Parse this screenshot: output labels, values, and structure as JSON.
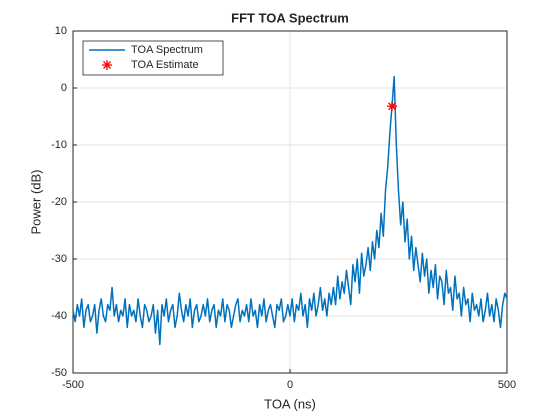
{
  "chart_data": {
    "type": "line",
    "title": "FFT TOA Spectrum",
    "xlabel": "TOA (ns)",
    "ylabel": "Power (dB)",
    "xlim": [
      -500,
      500
    ],
    "xticks": [
      -500,
      0,
      500
    ],
    "ylim": [
      -50,
      10
    ],
    "yticks": [
      -50,
      -40,
      -30,
      -20,
      -10,
      0,
      10
    ],
    "grid": true,
    "legend": "northwest",
    "series": [
      {
        "name": "TOA Spectrum",
        "color": "#0072bd",
        "style": "line",
        "x": [
          -500,
          -495,
          -490,
          -485,
          -480,
          -475,
          -470,
          -465,
          -460,
          -455,
          -450,
          -445,
          -440,
          -435,
          -430,
          -425,
          -420,
          -415,
          -410,
          -405,
          -400,
          -395,
          -390,
          -385,
          -380,
          -375,
          -370,
          -365,
          -360,
          -355,
          -350,
          -345,
          -340,
          -335,
          -330,
          -325,
          -320,
          -315,
          -310,
          -305,
          -300,
          -295,
          -290,
          -285,
          -280,
          -275,
          -270,
          -265,
          -260,
          -255,
          -250,
          -245,
          -240,
          -235,
          -230,
          -225,
          -220,
          -215,
          -210,
          -205,
          -200,
          -195,
          -190,
          -185,
          -180,
          -175,
          -170,
          -165,
          -160,
          -155,
          -150,
          -145,
          -140,
          -135,
          -130,
          -125,
          -120,
          -115,
          -110,
          -105,
          -100,
          -95,
          -90,
          -85,
          -80,
          -75,
          -70,
          -65,
          -60,
          -55,
          -50,
          -45,
          -40,
          -35,
          -30,
          -25,
          -20,
          -15,
          -10,
          -5,
          0,
          5,
          10,
          15,
          20,
          25,
          30,
          35,
          40,
          45,
          50,
          55,
          60,
          65,
          70,
          75,
          80,
          85,
          90,
          95,
          100,
          105,
          110,
          115,
          120,
          125,
          130,
          135,
          140,
          145,
          150,
          155,
          160,
          165,
          170,
          175,
          180,
          185,
          190,
          195,
          200,
          205,
          210,
          215,
          220,
          225,
          230,
          235,
          240,
          245,
          250,
          255,
          260,
          265,
          270,
          275,
          280,
          285,
          290,
          295,
          300,
          305,
          310,
          315,
          320,
          325,
          330,
          335,
          340,
          345,
          350,
          355,
          360,
          365,
          370,
          375,
          380,
          385,
          390,
          395,
          400,
          405,
          410,
          415,
          420,
          425,
          430,
          435,
          440,
          445,
          450,
          455,
          460,
          465,
          470,
          475,
          480,
          485,
          490,
          495,
          500
        ],
        "values": [
          -39,
          -41,
          -38,
          -40,
          -37,
          -42,
          -39,
          -38,
          -41,
          -40,
          -38,
          -43,
          -39,
          -37,
          -40,
          -41,
          -38,
          -39,
          -35,
          -40,
          -38,
          -41,
          -39,
          -40,
          -37,
          -42,
          -38,
          -40,
          -39,
          -41,
          -37,
          -40,
          -42,
          -38,
          -39,
          -41,
          -40,
          -38,
          -43,
          -39,
          -45,
          -38,
          -40,
          -37,
          -41,
          -39,
          -38,
          -42,
          -40,
          -36,
          -39,
          -41,
          -38,
          -40,
          -37,
          -42,
          -39,
          -38,
          -41,
          -40,
          -38,
          -40,
          -37,
          -41,
          -39,
          -38,
          -42,
          -39,
          -40,
          -37,
          -41,
          -38,
          -39,
          -42,
          -40,
          -38,
          -37,
          -41,
          -39,
          -40,
          -38,
          -41,
          -37,
          -40,
          -39,
          -42,
          -38,
          -40,
          -37,
          -41,
          -39,
          -38,
          -40,
          -42,
          -38,
          -39,
          -37,
          -41,
          -40,
          -38,
          -40,
          -37,
          -41,
          -38,
          -39,
          -36,
          -40,
          -38,
          -42,
          -37,
          -39,
          -36,
          -40,
          -38,
          -35,
          -39,
          -37,
          -40,
          -36,
          -38,
          -35,
          -38,
          -33,
          -37,
          -34,
          -36,
          -32,
          -35,
          -38,
          -31,
          -34,
          -30,
          -36,
          -29,
          -33,
          -31,
          -28,
          -32,
          -27,
          -30,
          -25,
          -28,
          -22,
          -26,
          -18,
          -14,
          -8,
          -3.2,
          2,
          -10,
          -18,
          -24,
          -20,
          -27,
          -23,
          -30,
          -26,
          -32,
          -28,
          -31,
          -34,
          -29,
          -33,
          -30,
          -36,
          -32,
          -35,
          -31,
          -37,
          -33,
          -34,
          -38,
          -32,
          -36,
          -35,
          -39,
          -33,
          -37,
          -36,
          -40,
          -35,
          -38,
          -37,
          -41,
          -36,
          -39,
          -38,
          -40,
          -37,
          -41,
          -39,
          -36,
          -40,
          -38,
          -41,
          -37,
          -39,
          -42,
          -38,
          -36,
          -37
        ]
      },
      {
        "name": "TOA Estimate",
        "color": "#ff0000",
        "style": "star",
        "x": [
          235
        ],
        "values": [
          -3.2
        ]
      }
    ]
  }
}
